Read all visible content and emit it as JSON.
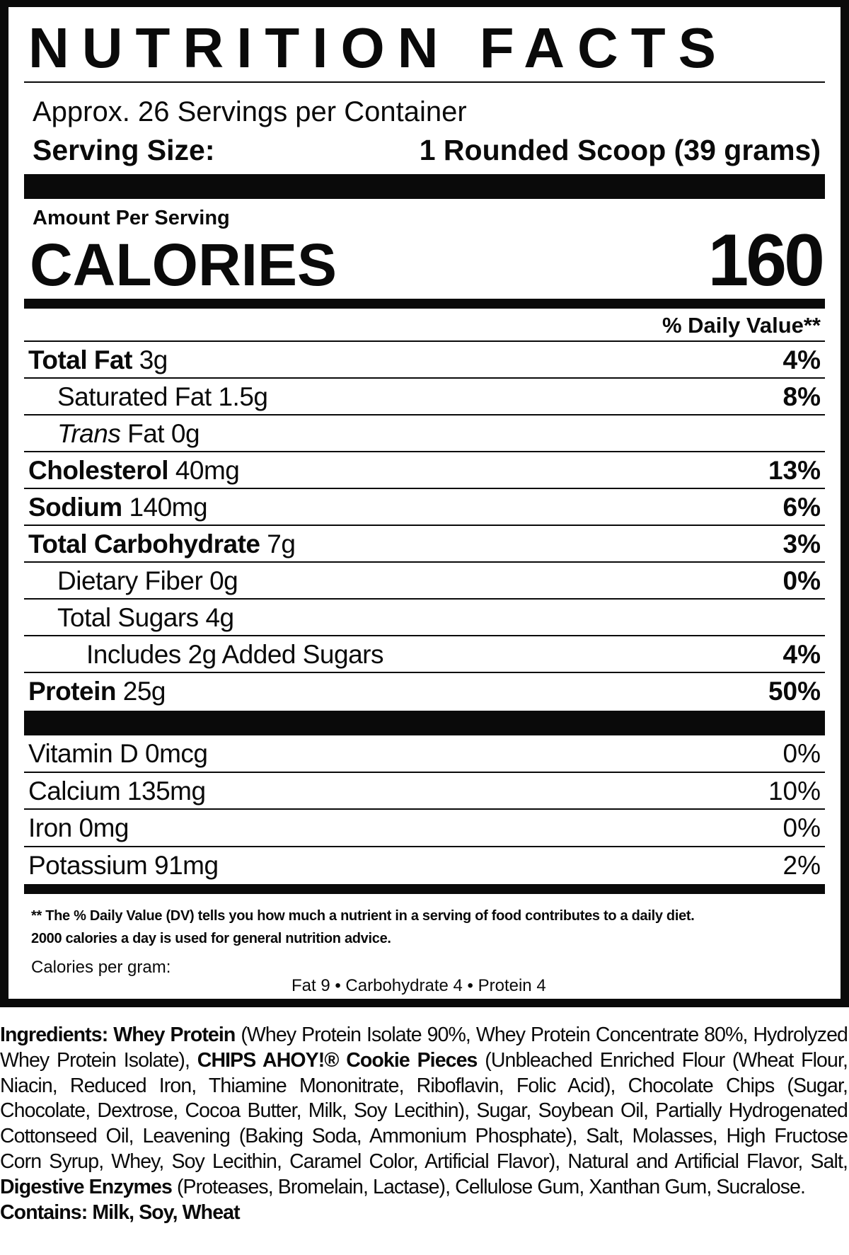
{
  "title": "NUTRITION FACTS",
  "servings_per_container": "Approx. 26 Servings per Container",
  "serving_size_label": "Serving Size:",
  "serving_size_value": "1 Rounded Scoop (39 grams)",
  "amount_per_serving": "Amount Per Serving",
  "calories_label": "CALORIES",
  "calories_value": "160",
  "dv_header": "% Daily Value**",
  "nutrients": [
    {
      "name": "Total Fat",
      "amount": "3g",
      "dv": "4%"
    },
    {
      "name": "Saturated Fat",
      "amount": "1.5g",
      "dv": "8%"
    },
    {
      "name_italic": "Trans",
      "name": "Fat",
      "amount": "0g",
      "dv": ""
    },
    {
      "name": "Cholesterol",
      "amount": "40mg",
      "dv": "13%"
    },
    {
      "name": "Sodium",
      "amount": "140mg",
      "dv": "6%"
    },
    {
      "name": "Total Carbohydrate",
      "amount": "7g",
      "dv": "3%"
    },
    {
      "name": "Dietary Fiber",
      "amount": "0g",
      "dv": "0%"
    },
    {
      "name": "Total Sugars",
      "amount": "4g",
      "dv": ""
    },
    {
      "name": "Includes 2g Added Sugars",
      "amount": "",
      "dv": "4%"
    },
    {
      "name": "Protein",
      "amount": "25g",
      "dv": "50%"
    }
  ],
  "vitamins": [
    {
      "name": "Vitamin D 0mcg",
      "dv": "0%"
    },
    {
      "name": "Calcium 135mg",
      "dv": "10%"
    },
    {
      "name": "Iron 0mg",
      "dv": "0%"
    },
    {
      "name": "Potassium 91mg",
      "dv": "2%"
    }
  ],
  "footnote_line1": "** The % Daily Value (DV) tells you how much a nutrient in a serving of food contributes to a daily diet.",
  "footnote_line2": "2000 calories a day is used for general nutrition advice.",
  "calories_per_gram_label": "Calories per gram:",
  "calories_per_gram_values": "Fat 9 • Carbohydrate 4 • Protein 4",
  "ingredients": {
    "label": "Ingredients:",
    "p1_bold": "Whey Protein",
    "p1": "(Whey Protein Isolate 90%, Whey Protein Concentrate 80%, Hydrolyzed Whey Protein Isolate),",
    "p2_bold": "CHIPS AHOY!® Cookie Pieces",
    "p2": "(Unbleached Enriched Flour (Wheat Flour, Niacin, Reduced Iron, Thiamine Mononitrate, Riboflavin, Folic Acid), Chocolate Chips (Sugar, Chocolate, Dextrose, Cocoa Butter, Milk, Soy Lecithin), Sugar, Soybean Oil, Partially Hydrogenated Cottonseed Oil, Leavening (Baking Soda, Ammonium Phosphate), Salt, Molasses, High Fructose Corn Syrup, Whey, Soy Lecithin, Caramel Color, Artificial Flavor), Natural and Artificial Flavor, Salt,",
    "p3_bold": "Digestive Enzymes",
    "p3": "(Proteases, Bromelain, Lactase), Cellulose Gum, Xanthan Gum, Sucralose.",
    "contains": "Contains: Milk, Soy, Wheat"
  }
}
